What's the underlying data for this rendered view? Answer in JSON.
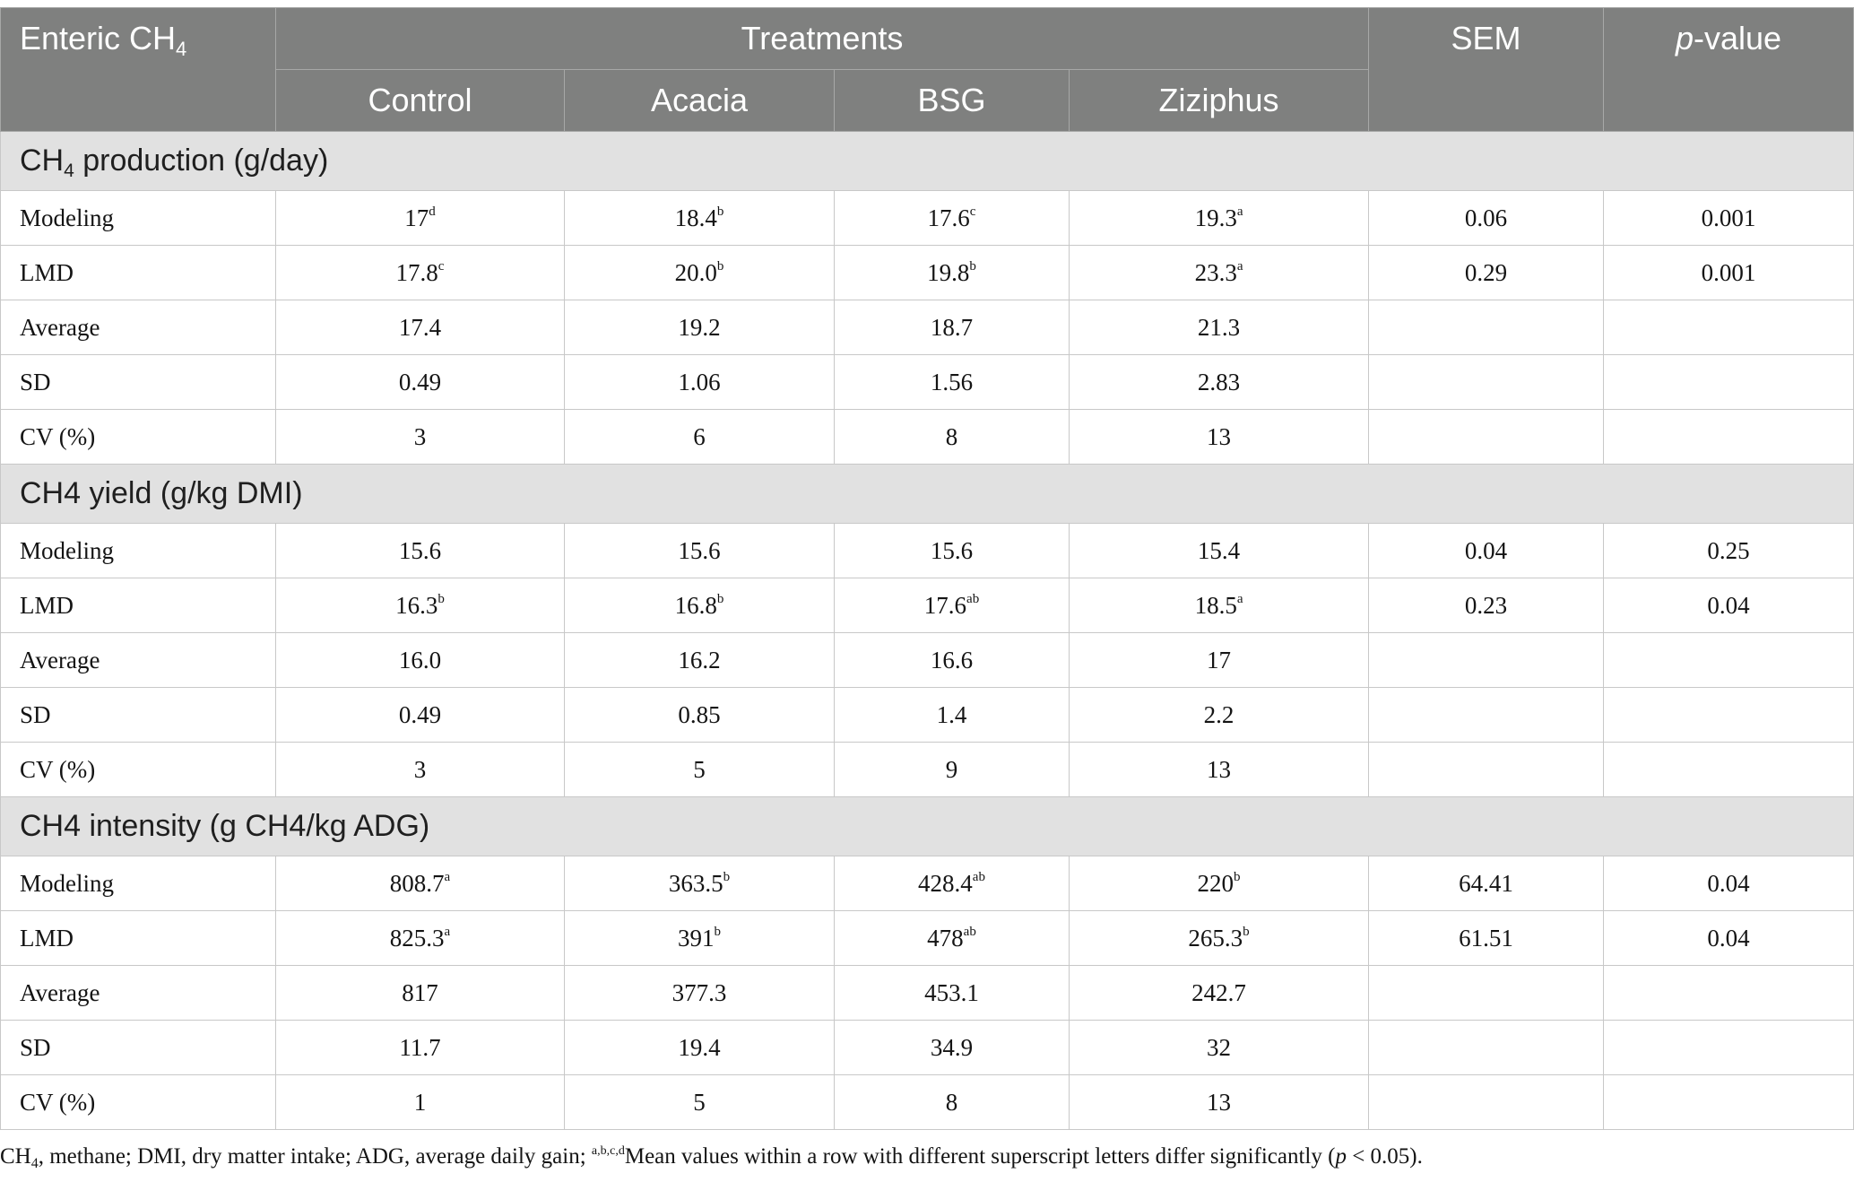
{
  "colors": {
    "header_bg": "#7f807f",
    "header_text": "#ffffff",
    "section_bg": "#e1e1e1",
    "grid_border": "#c8c8c8"
  },
  "table": {
    "header": {
      "row_label": [
        {
          "t": "Enteric CH"
        },
        {
          "t": "4",
          "sub": true
        }
      ],
      "group_label": "Treatments",
      "treatments": [
        "Control",
        "Acacia",
        "BSG",
        "Ziziphus"
      ],
      "sem_label": "SEM",
      "pvalue_label": [
        {
          "t": "p",
          "i": true
        },
        {
          "t": "-value"
        }
      ]
    },
    "sections": [
      {
        "title": [
          {
            "t": "CH"
          },
          {
            "t": "4",
            "sub": true
          },
          {
            "t": " production (g/day)"
          }
        ],
        "rows": [
          {
            "cells": [
              "Modeling",
              {
                "v": "17",
                "s": "d"
              },
              {
                "v": "18.4",
                "s": "b"
              },
              {
                "v": "17.6",
                "s": "c"
              },
              {
                "v": "19.3",
                "s": "a"
              },
              "0.06",
              "0.001"
            ]
          },
          {
            "cells": [
              "LMD",
              {
                "v": "17.8",
                "s": "c"
              },
              {
                "v": "20.0",
                "s": "b"
              },
              {
                "v": "19.8",
                "s": "b"
              },
              {
                "v": "23.3",
                "s": "a"
              },
              "0.29",
              "0.001"
            ]
          },
          {
            "cells": [
              "Average",
              "17.4",
              "19.2",
              "18.7",
              "21.3",
              "",
              ""
            ]
          },
          {
            "cells": [
              "SD",
              "0.49",
              "1.06",
              "1.56",
              "2.83",
              "",
              ""
            ]
          },
          {
            "cells": [
              "CV (%)",
              "3",
              "6",
              "8",
              "13",
              "",
              ""
            ]
          }
        ]
      },
      {
        "title": [
          {
            "t": "CH4 yield (g/kg DMI)"
          }
        ],
        "rows": [
          {
            "cells": [
              "Modeling",
              "15.6",
              "15.6",
              "15.6",
              "15.4",
              "0.04",
              "0.25"
            ]
          },
          {
            "cells": [
              "LMD",
              {
                "v": "16.3",
                "s": "b"
              },
              {
                "v": "16.8",
                "s": "b"
              },
              {
                "v": "17.6",
                "s": "ab"
              },
              {
                "v": "18.5",
                "s": "a"
              },
              "0.23",
              "0.04"
            ]
          },
          {
            "cells": [
              "Average",
              "16.0",
              "16.2",
              "16.6",
              "17",
              "",
              ""
            ]
          },
          {
            "cells": [
              "SD",
              "0.49",
              "0.85",
              "1.4",
              "2.2",
              "",
              ""
            ]
          },
          {
            "cells": [
              "CV (%)",
              "3",
              "5",
              "9",
              "13",
              "",
              ""
            ]
          }
        ]
      },
      {
        "title": [
          {
            "t": "CH4 intensity (g CH4/kg ADG)"
          }
        ],
        "rows": [
          {
            "cells": [
              "Modeling",
              {
                "v": "808.7",
                "s": "a"
              },
              {
                "v": "363.5",
                "s": "b"
              },
              {
                "v": "428.4",
                "s": "ab"
              },
              {
                "v": "220",
                "s": "b"
              },
              "64.41",
              "0.04"
            ]
          },
          {
            "cells": [
              "LMD",
              {
                "v": "825.3",
                "s": "a"
              },
              {
                "v": "391",
                "s": "b"
              },
              {
                "v": "478",
                "s": "ab"
              },
              {
                "v": "265.3",
                "s": "b"
              },
              "61.51",
              "0.04"
            ]
          },
          {
            "cells": [
              "Average",
              "817",
              "377.3",
              "453.1",
              "242.7",
              "",
              ""
            ]
          },
          {
            "cells": [
              "SD",
              "11.7",
              "19.4",
              "34.9",
              "32",
              "",
              ""
            ]
          },
          {
            "cells": [
              "CV (%)",
              "1",
              "5",
              "8",
              "13",
              "",
              ""
            ]
          }
        ]
      }
    ]
  },
  "footnote": {
    "p1": "CH",
    "p1_sub": "4",
    "p2": ", methane; DMI, dry matter intake; ADG, average daily gain; ",
    "p3_sup": "a,b,c,d",
    "p4": "Mean values within a row with different superscript letters differ significantly (",
    "p5_italic": "p",
    "p6": " < 0.05)."
  }
}
